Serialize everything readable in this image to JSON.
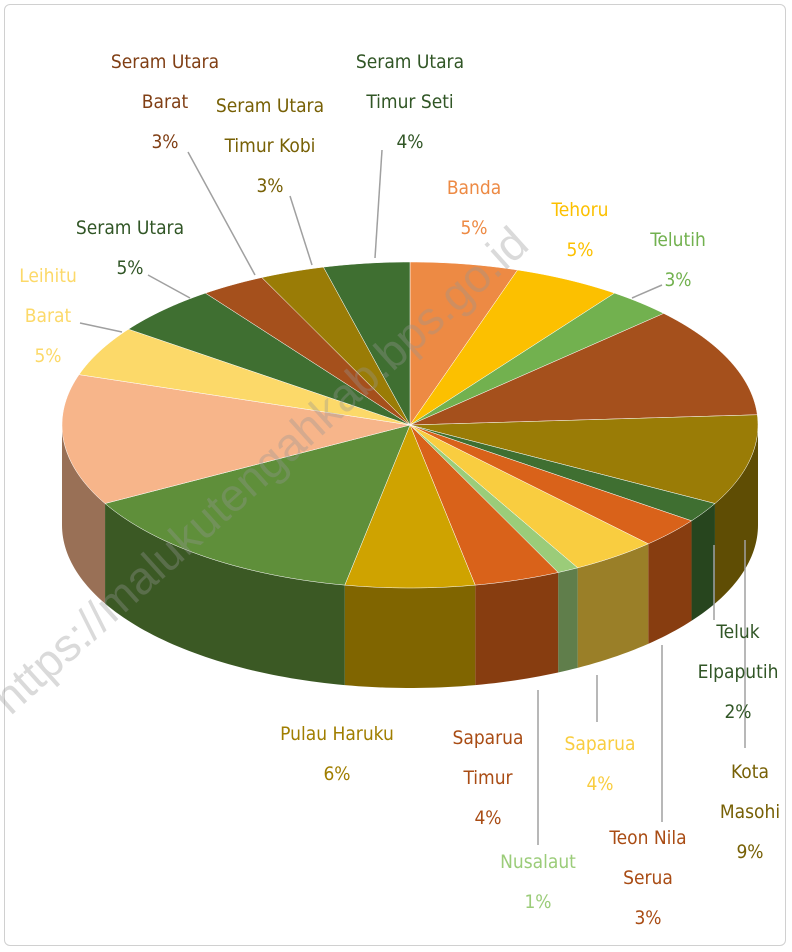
{
  "chart_data": {
    "type": "pie3d",
    "categories": [
      "Banda",
      "Tehoru",
      "Telutih",
      null,
      "Kota Masohi",
      "Teluk Elpaputih",
      "Teon Nila Serua",
      "Saparua",
      "Nusalaut",
      "Saparua Timur",
      "Pulau Haruku",
      null,
      null,
      "Leihitu Barat",
      "Seram Utara",
      "Seram Utara Barat",
      "Seram Utara Timur Kobi",
      "Seram Utara Timur Seti"
    ],
    "values": [
      5,
      5,
      3,
      11,
      9,
      2,
      3,
      4,
      1,
      4,
      6,
      14,
      13,
      5,
      5,
      3,
      3,
      4
    ],
    "value_labels": [
      "5%",
      "5%",
      "3%",
      null,
      "9%",
      "2%",
      "3%",
      "4%",
      "1%",
      "4%",
      "6%",
      null,
      null,
      "5%",
      "5%",
      "3%",
      "3%",
      "4%"
    ],
    "colors": [
      "#ed8a44",
      "#fcc000",
      "#72b14f",
      "#a5501c",
      "#9a7c06",
      "#3f6f31",
      "#d9621a",
      "#f9cd40",
      "#9bcc79",
      "#d9621a",
      "#cfa300",
      "#5f8f3a",
      "#f7b58a",
      "#fcd969",
      "#3f6f31",
      "#a5501c",
      "#9a7c06",
      "#3f6f31"
    ],
    "watermark": "https://malukutengahkab.bps.go.id"
  }
}
